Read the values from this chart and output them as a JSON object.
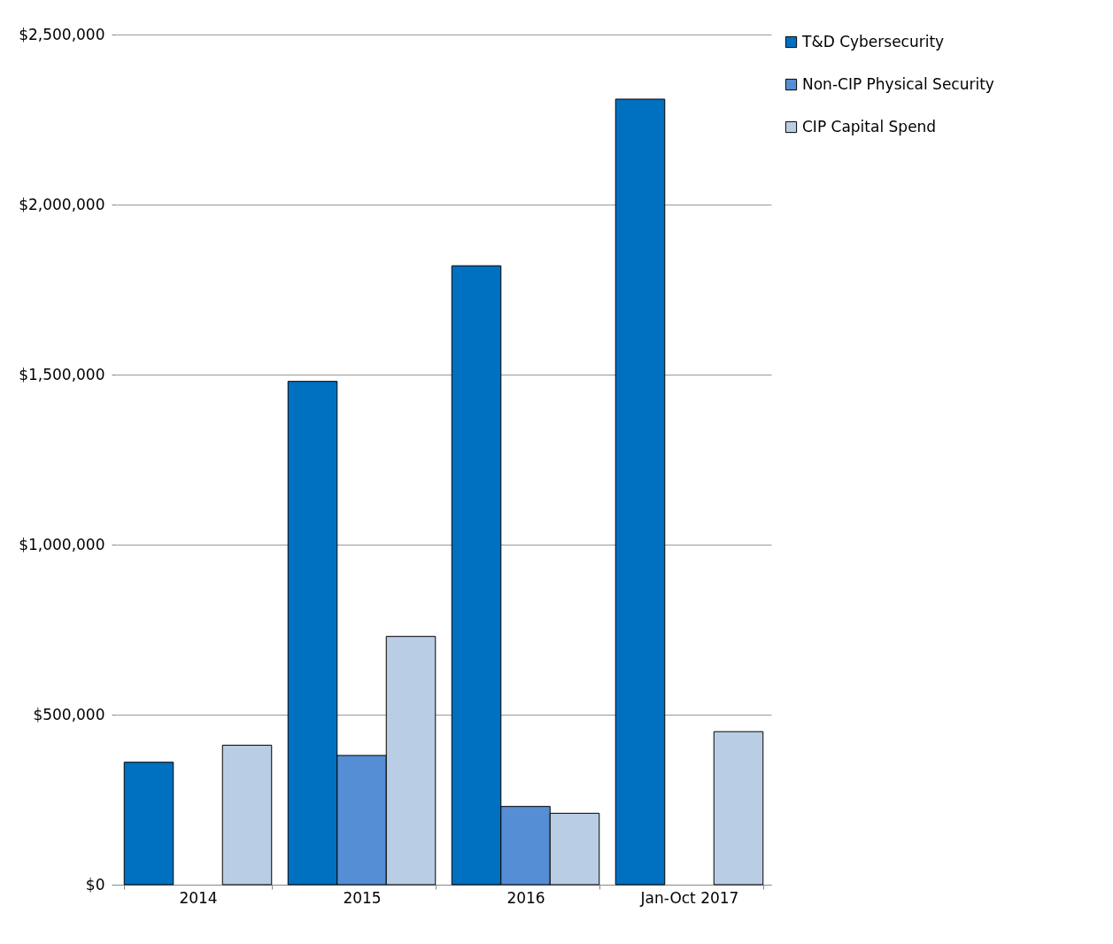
{
  "chart_data": {
    "type": "bar",
    "categories": [
      "2014",
      "2015",
      "2016",
      "Jan-Oct 2017"
    ],
    "series": [
      {
        "name": "T&D Cybersecurity",
        "color": "#0070c0",
        "values": [
          360000,
          1480000,
          1820000,
          2310000
        ]
      },
      {
        "name": "Non-CIP Physical Security",
        "color": "#558ed5",
        "values": [
          null,
          380000,
          230000,
          null
        ]
      },
      {
        "name": "CIP Capital Spend",
        "color": "#b9cde5",
        "values": [
          410000,
          730000,
          210000,
          450000
        ]
      }
    ],
    "ylim": [
      0,
      2500000
    ],
    "yticks": [
      {
        "value": 0,
        "label": "$0"
      },
      {
        "value": 500000,
        "label": "$500,000"
      },
      {
        "value": 1000000,
        "label": "$1,000,000"
      },
      {
        "value": 1500000,
        "label": "$1,500,000"
      },
      {
        "value": 2000000,
        "label": "$2,000,000"
      },
      {
        "value": 2500000,
        "label": "$2,500,000"
      }
    ],
    "grid": "y",
    "legend": "right"
  }
}
